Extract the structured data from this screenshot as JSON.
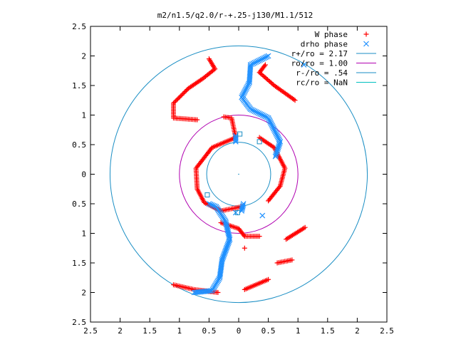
{
  "chart_data": {
    "type": "scatter",
    "title": "m2/n1.5/q2.0/r-+.25-j130/M1.1/512",
    "xlabel": "",
    "ylabel": "",
    "xlim": [
      -2.5,
      2.5
    ],
    "ylim": [
      -2.5,
      2.5
    ],
    "x_tick_labels": [
      "2.5",
      "2",
      "1.5",
      "1",
      "0.5",
      "0",
      "0.5",
      "1",
      "1.5",
      "2",
      "2.5"
    ],
    "y_tick_labels": [
      "2.5",
      "2",
      "1.5",
      "1",
      "0.5",
      "0",
      "0.5",
      "1",
      "1.5",
      "2",
      "2.5"
    ],
    "grid": false,
    "legend_position": "top-right",
    "series": [
      {
        "name": "W phase",
        "marker": "plus",
        "color": "#ff0000",
        "points": [
          [
            -0.5,
            1.95
          ],
          [
            -0.4,
            1.78
          ],
          [
            -0.6,
            1.62
          ],
          [
            -0.85,
            1.45
          ],
          [
            -1.1,
            1.2
          ],
          [
            -1.1,
            0.95
          ],
          [
            -0.7,
            0.92
          ],
          [
            -0.25,
            0.97
          ],
          [
            -0.12,
            0.95
          ],
          [
            -0.05,
            0.62
          ],
          [
            -0.45,
            0.45
          ],
          [
            -0.72,
            0.1
          ],
          [
            -0.7,
            -0.25
          ],
          [
            -0.58,
            -0.48
          ],
          [
            -0.3,
            -0.62
          ],
          [
            0.05,
            -0.55
          ],
          [
            0.5,
            -0.45
          ],
          [
            0.7,
            -0.2
          ],
          [
            0.78,
            0.1
          ],
          [
            0.6,
            0.45
          ],
          [
            0.35,
            0.62
          ],
          [
            0.45,
            1.85
          ],
          [
            0.35,
            1.72
          ],
          [
            0.6,
            1.5
          ],
          [
            0.95,
            1.25
          ],
          [
            1.12,
            -0.9
          ],
          [
            0.8,
            -1.1
          ],
          [
            0.35,
            -1.05
          ],
          [
            0.1,
            -1.05
          ],
          [
            0.0,
            -0.92
          ],
          [
            -0.3,
            -0.82
          ],
          [
            0.1,
            -1.25
          ],
          [
            0.65,
            -1.5
          ],
          [
            0.9,
            -1.45
          ],
          [
            0.5,
            -1.78
          ],
          [
            0.1,
            -1.95
          ],
          [
            -0.35,
            -2.0
          ],
          [
            -0.75,
            -1.95
          ],
          [
            -1.1,
            -1.87
          ]
        ]
      },
      {
        "name": "drho phase",
        "marker": "cross",
        "color": "#1e90ff",
        "points": [
          [
            0.5,
            2.0
          ],
          [
            0.2,
            1.85
          ],
          [
            0.18,
            1.55
          ],
          [
            0.05,
            1.3
          ],
          [
            0.2,
            1.1
          ],
          [
            0.5,
            0.95
          ],
          [
            0.7,
            0.55
          ],
          [
            0.62,
            0.3
          ],
          [
            -0.05,
            0.65
          ],
          [
            -0.05,
            0.55
          ],
          [
            0.05,
            -0.62
          ],
          [
            0.08,
            -0.5
          ],
          [
            -0.5,
            -0.5
          ],
          [
            -0.38,
            -0.55
          ],
          [
            -0.22,
            -0.8
          ],
          [
            -0.15,
            -1.1
          ],
          [
            -0.28,
            -1.45
          ],
          [
            -0.32,
            -1.75
          ],
          [
            -0.45,
            -1.97
          ],
          [
            -0.75,
            -2.0
          ],
          [
            0.4,
            -0.7
          ],
          [
            -0.05,
            -0.65
          ],
          [
            1.1,
            1.85
          ]
        ]
      }
    ],
    "circles": [
      {
        "name": "r+/ro = 2.17",
        "r": 2.17,
        "color": "#1a8ec4"
      },
      {
        "name": "ro/ro = 1.00",
        "r": 1.0,
        "color": "#b000b0"
      },
      {
        "name": "r-/ro = .54",
        "r": 0.54,
        "color": "#1a8ec4"
      },
      {
        "name": "rc/ro = NaN",
        "r": null,
        "color": "#00c0c0"
      }
    ],
    "square_markers": [
      [
        0.02,
        0.68
      ],
      [
        0.35,
        0.55
      ],
      [
        -0.53,
        -0.35
      ],
      [
        -0.02,
        -0.65
      ]
    ]
  }
}
